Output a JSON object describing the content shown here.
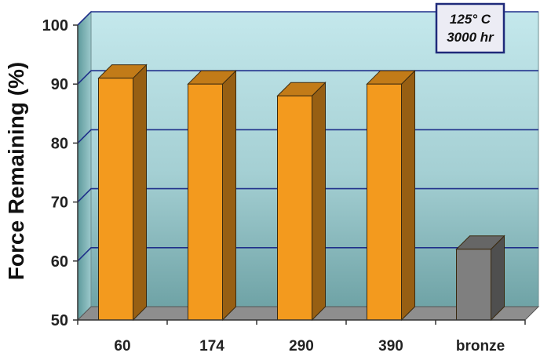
{
  "chart_data": {
    "type": "bar",
    "categories": [
      "60",
      "174",
      "290",
      "390",
      "bronze"
    ],
    "values": [
      91,
      90,
      88,
      90,
      62
    ],
    "bar_colors": [
      "#f39a1e",
      "#f39a1e",
      "#f39a1e",
      "#f39a1e",
      "#7f7f7f"
    ],
    "ylabel": "Force Remaining (%)",
    "xlabel": "",
    "title": "",
    "ylim": [
      50,
      100
    ],
    "yticks": [
      50,
      60,
      70,
      80,
      90,
      100
    ],
    "grid": true,
    "annotation": [
      "125° C",
      "3000 hr"
    ],
    "annotation_placement": "top-right",
    "style": "3d"
  }
}
